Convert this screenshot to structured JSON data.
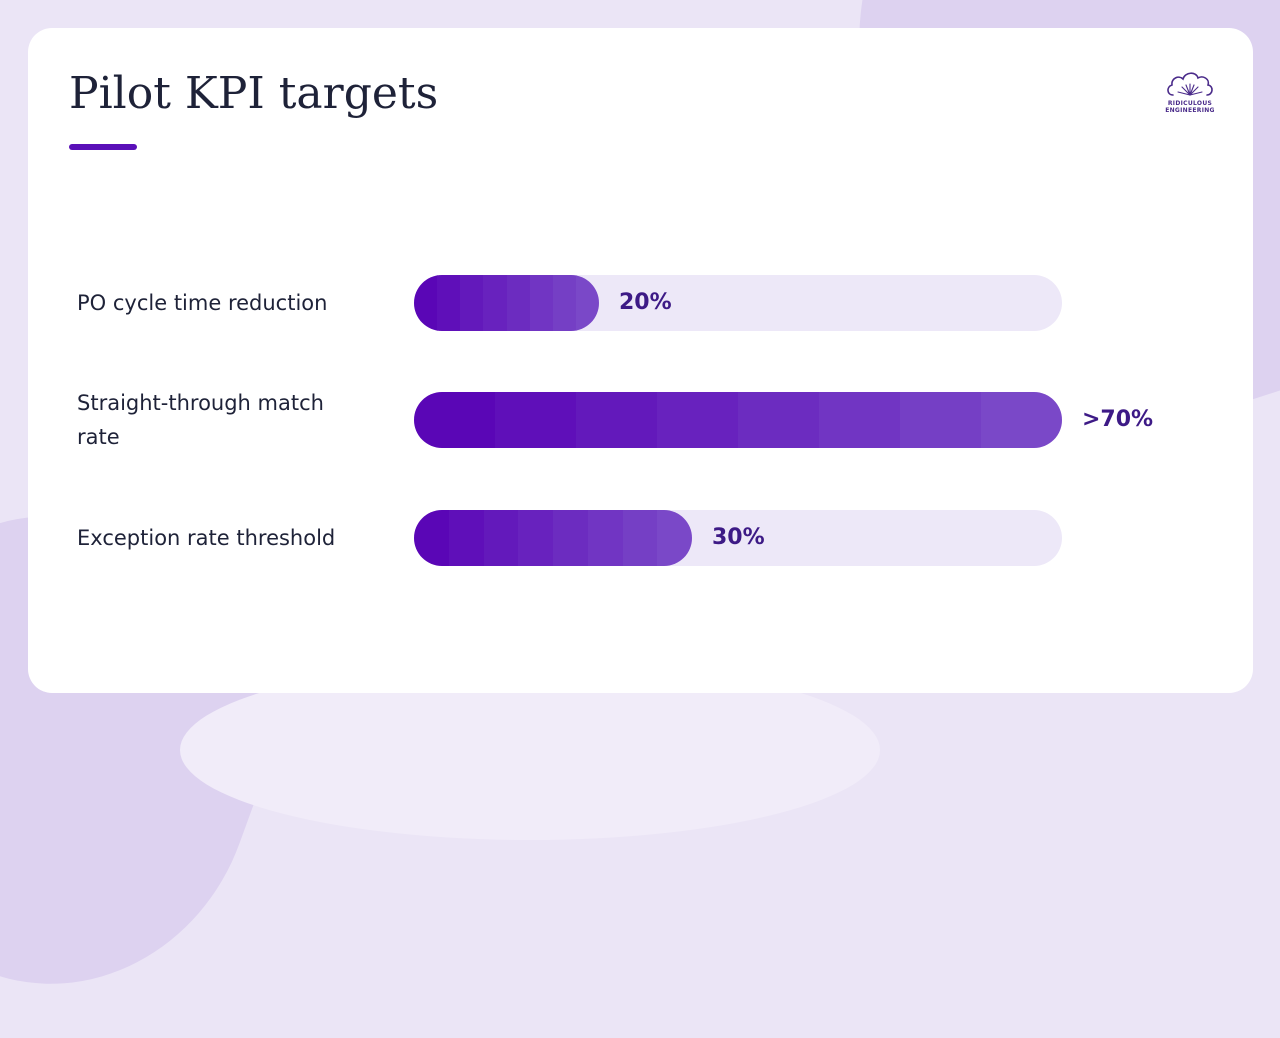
{
  "slide": {
    "title": "Pilot KPI targets"
  },
  "logo": {
    "line1": "RIDICULOUS",
    "line2": "ENGINEERING"
  },
  "colors": {
    "accent": "#5a10b8",
    "fill_start": "#5a06b6",
    "fill_end": "#7a48c8",
    "track": "#ede8f8",
    "value_text": "#3d1a86"
  },
  "chart_data": {
    "type": "bar",
    "orientation": "horizontal",
    "categories": [
      "PO cycle time reduction",
      "Straight-through match rate",
      "Exception rate threshold"
    ],
    "values": [
      20,
      70,
      30
    ],
    "value_labels": [
      "20%",
      ">70%",
      "30%"
    ],
    "xlim": [
      0,
      70
    ],
    "title": "",
    "xlabel": "",
    "ylabel": "",
    "grid": false,
    "legend": "none"
  }
}
